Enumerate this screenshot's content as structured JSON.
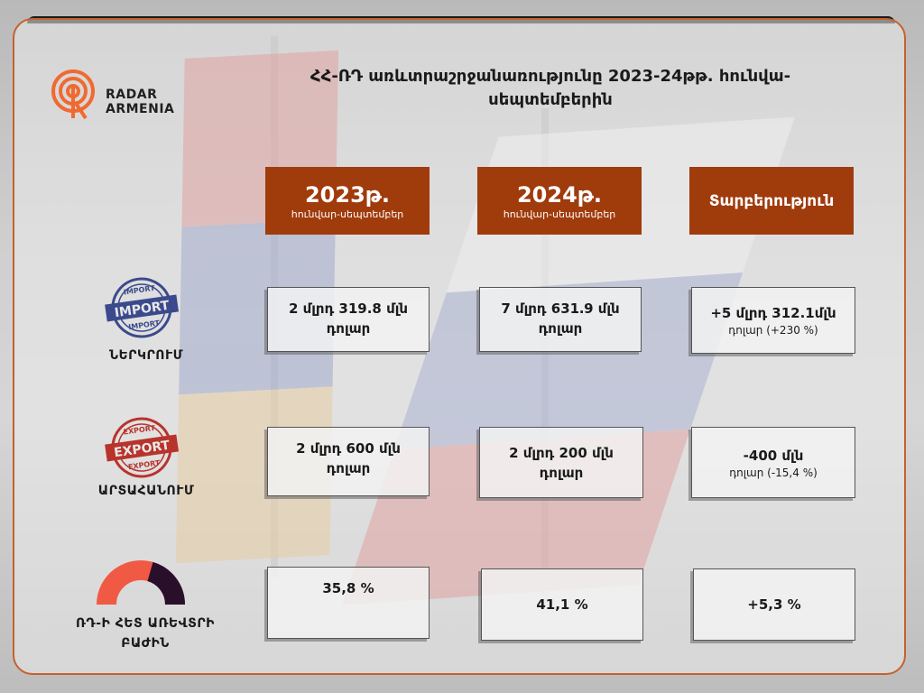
{
  "title": "ՀՀ-ՌԴ առևտրաշրջանառությունը 2023-24թթ. հունվա-սեպտեմբերին",
  "logo": {
    "line1": "RADAR",
    "line2": "ARMENIA",
    "icon": "radar-icon"
  },
  "columns": [
    {
      "year": "2023թ.",
      "period": "հունվար-սեպտեմբեր"
    },
    {
      "year": "2024թ.",
      "period": "հունվար-սեպտեմբեր"
    },
    {
      "label": "Տարբերություն"
    }
  ],
  "rows": {
    "import": {
      "label": "ՆԵՐԿՐՈՒՄ",
      "stamp": {
        "top": "IMPORT",
        "main": "IMPORT",
        "bottom": "IMPORT"
      },
      "v2023": "2 մլրդ 319.8 մլն դոլար",
      "v2024": "7 մլրդ 631․9 մլն դոլար",
      "diff_main": "+5 մլրդ 312.1մլն",
      "diff_sub": "դոլար (+230 %)"
    },
    "export": {
      "label": "ԱՐՏԱՀԱՆՈՒՄ",
      "stamp": {
        "top": "EXPORT",
        "main": "EXPORT",
        "bottom": "EXPORT"
      },
      "v2023": "2 մլրդ 600 մլն դոլար",
      "v2024": "2 մլրդ 200 մլն դոլար",
      "diff_main": "-400 մլն",
      "diff_sub": "դոլար (-15,4 %)"
    },
    "share": {
      "label": "ՌԴ-Ի ՀԵՏ ԱՌԵՎՏՐԻ ԲԱԺԻՆ",
      "gauge_fraction": 0.411,
      "v2023": "35,8 %",
      "v2024": "41,1 %",
      "diff": "+5,3 %"
    }
  },
  "colors": {
    "accent": "#a03b0c",
    "frame": "#c4622d",
    "gauge_fill": "#2a0f2b",
    "gauge_rest": "#f05a45",
    "stamp": "#3b4a8c",
    "stamp_red": "#b8332b"
  }
}
